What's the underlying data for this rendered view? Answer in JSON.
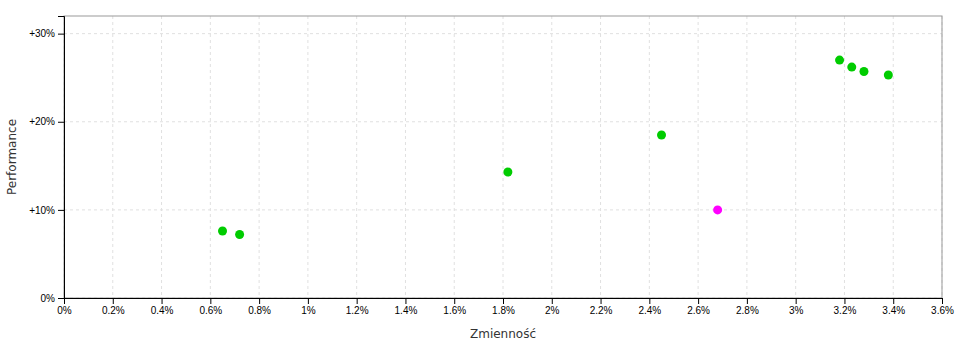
{
  "chart_data": {
    "type": "scatter",
    "xlabel": "Zmienność",
    "ylabel": "Performance",
    "xlim": [
      0.0,
      0.036
    ],
    "ylim": [
      0.0,
      0.32
    ],
    "xticks": [
      {
        "value": 0.0,
        "label": "0%"
      },
      {
        "value": 0.002,
        "label": "0.2%"
      },
      {
        "value": 0.004,
        "label": "0.4%"
      },
      {
        "value": 0.006,
        "label": "0.6%"
      },
      {
        "value": 0.008,
        "label": "0.8%"
      },
      {
        "value": 0.01,
        "label": "1%"
      },
      {
        "value": 0.012,
        "label": "1.2%"
      },
      {
        "value": 0.014,
        "label": "1.4%"
      },
      {
        "value": 0.016,
        "label": "1.6%"
      },
      {
        "value": 0.018,
        "label": "1.8%"
      },
      {
        "value": 0.02,
        "label": "2%"
      },
      {
        "value": 0.022,
        "label": "2.2%"
      },
      {
        "value": 0.024,
        "label": "2.4%"
      },
      {
        "value": 0.026,
        "label": "2.6%"
      },
      {
        "value": 0.028,
        "label": "2.8%"
      },
      {
        "value": 0.03,
        "label": "3%"
      },
      {
        "value": 0.032,
        "label": "3.2%"
      },
      {
        "value": 0.034,
        "label": "3.4%"
      },
      {
        "value": 0.036,
        "label": "3.6%"
      }
    ],
    "yticks": [
      {
        "value": 0.0,
        "label": "0%"
      },
      {
        "value": 0.1,
        "label": "+10%"
      },
      {
        "value": 0.2,
        "label": "+20%"
      },
      {
        "value": 0.3,
        "label": "+30%"
      }
    ],
    "grid": true,
    "series": [
      {
        "color": "#00cc00",
        "x": [
          0.0065,
          0.0072,
          0.0245,
          0.0182,
          0.0318,
          0.0323,
          0.0328,
          0.0338
        ],
        "values": [
          0.076,
          0.072,
          0.185,
          0.143,
          0.27,
          0.262,
          0.257,
          0.253
        ]
      },
      {
        "color": "#ff00ff",
        "x": [
          0.0268
        ],
        "values": [
          0.1
        ]
      }
    ]
  }
}
